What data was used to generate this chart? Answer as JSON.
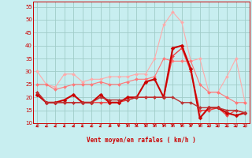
{
  "xlabel": "Vent moyen/en rafales ( km/h )",
  "xlim": [
    -0.5,
    23.5
  ],
  "ylim": [
    10,
    57
  ],
  "yticks": [
    10,
    15,
    20,
    25,
    30,
    35,
    40,
    45,
    50,
    55
  ],
  "xticks": [
    0,
    1,
    2,
    3,
    4,
    5,
    6,
    7,
    8,
    9,
    10,
    11,
    12,
    13,
    14,
    15,
    16,
    17,
    18,
    19,
    20,
    21,
    22,
    23
  ],
  "bg_color": "#c8eef0",
  "grid_color": "#a0ccc8",
  "series": [
    {
      "color": "#ffaaaa",
      "linewidth": 0.8,
      "marker": "D",
      "markersize": 2.0,
      "values": [
        30,
        25,
        24,
        29,
        29,
        26,
        27,
        27,
        28,
        28,
        28,
        29,
        29,
        35,
        48,
        53,
        49,
        34,
        35,
        22,
        22,
        28,
        35,
        18
      ]
    },
    {
      "color": "#ff7777",
      "linewidth": 0.8,
      "marker": "D",
      "markersize": 2.0,
      "values": [
        25,
        25,
        23,
        24,
        25,
        25,
        25,
        26,
        25,
        25,
        26,
        27,
        27,
        28,
        35,
        34,
        34,
        34,
        25,
        22,
        22,
        20,
        18,
        18
      ]
    },
    {
      "color": "#ee4444",
      "linewidth": 1.0,
      "marker": "D",
      "markersize": 2.0,
      "values": [
        22,
        18,
        18,
        18,
        18,
        18,
        18,
        18,
        18,
        18,
        19,
        20,
        20,
        20,
        20,
        36,
        39,
        30,
        15,
        15,
        16,
        13,
        15,
        14
      ]
    },
    {
      "color": "#cc0000",
      "linewidth": 1.5,
      "marker": "D",
      "markersize": 2.5,
      "values": [
        21,
        18,
        18,
        19,
        21,
        18,
        18,
        21,
        18,
        18,
        20,
        20,
        26,
        27,
        20,
        39,
        40,
        31,
        12,
        16,
        16,
        14,
        13,
        14
      ]
    },
    {
      "color": "#bb3333",
      "linewidth": 1.0,
      "marker": "D",
      "markersize": 2.0,
      "values": [
        22,
        18,
        18,
        18,
        18,
        18,
        18,
        20,
        19,
        19,
        19,
        20,
        20,
        20,
        20,
        20,
        18,
        18,
        16,
        16,
        16,
        15,
        15,
        14
      ]
    }
  ],
  "tick_label_color": "#cc0000",
  "xlabel_color": "#cc0000",
  "arrow_angles": [
    225,
    225,
    225,
    225,
    225,
    225,
    225,
    225,
    200,
    180,
    180,
    180,
    180,
    180,
    180,
    180,
    180,
    180,
    180,
    225,
    225,
    225,
    225,
    225
  ]
}
